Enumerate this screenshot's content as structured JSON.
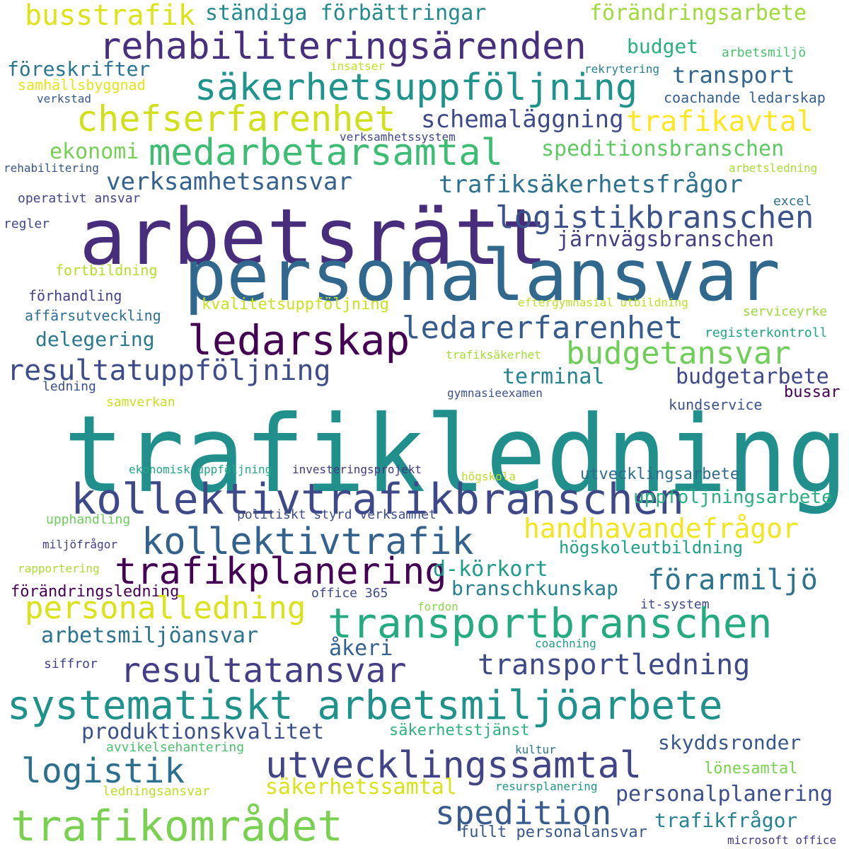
{
  "words": [
    {
      "text": "busstrafik",
      "color": "#dde318"
    },
    {
      "text": "ständiga förbättringar",
      "color": "#238a8d"
    },
    {
      "text": "förändringsarbete",
      "color": "#a0da39"
    },
    {
      "text": "rehabiliteringsärenden",
      "color": "#46307e"
    },
    {
      "text": "budget",
      "color": "#2ab07f"
    },
    {
      "text": "föreskrifter",
      "color": "#2a768e"
    },
    {
      "text": "insatser",
      "color": "#c2df23"
    },
    {
      "text": "rekrytering",
      "color": "#26828e"
    },
    {
      "text": "arbetsmiljö",
      "color": "#4ac16d"
    },
    {
      "text": "säkerhetsuppföljning",
      "color": "#1f948c"
    },
    {
      "text": "transport",
      "color": "#31668e"
    },
    {
      "text": "samhällsbyggnad",
      "color": "#e5e419"
    },
    {
      "text": "coachande ledarskap",
      "color": "#355f8d"
    },
    {
      "text": "verkstad",
      "color": "#38588c"
    },
    {
      "text": "chefserfarenhet",
      "color": "#d0e11c"
    },
    {
      "text": "schemaläggning",
      "color": "#3e4a89"
    },
    {
      "text": "trafikavtal",
      "color": "#fde725"
    },
    {
      "text": "verksamhetssystem",
      "color": "#404688"
    },
    {
      "text": "ekonomi",
      "color": "#75d054"
    },
    {
      "text": "medarbetarsamtal",
      "color": "#3dbc74"
    },
    {
      "text": "speditionsbranschen",
      "color": "#5ec962"
    },
    {
      "text": "rehabilitering",
      "color": "#39568c"
    },
    {
      "text": "arbetsledning",
      "color": "#a8db34"
    },
    {
      "text": "verksamhetsansvar",
      "color": "#34618d"
    },
    {
      "text": "trafiksäkerhetsfrågor",
      "color": "#2c718e"
    },
    {
      "text": "operativt ansvar",
      "color": "#414487"
    },
    {
      "text": "excel",
      "color": "#2d708e"
    },
    {
      "text": "arbetsrätt",
      "color": "#472d7b"
    },
    {
      "text": "logistikbranschen",
      "color": "#3b528b"
    },
    {
      "text": "regler",
      "color": "#3f4788"
    },
    {
      "text": "järnvägsbranschen",
      "color": "#433e85"
    },
    {
      "text": "personalansvar",
      "color": "#31688e"
    },
    {
      "text": "fortbildning",
      "color": "#b5de2b"
    },
    {
      "text": "förhandling",
      "color": "#424086"
    },
    {
      "text": "kvalitetsuppföljning",
      "color": "#cae11f"
    },
    {
      "text": "eftergymnasial utbildning",
      "color": "#bddf26"
    },
    {
      "text": "affärsutveckling",
      "color": "#2e6e8e"
    },
    {
      "text": "serviceyrke",
      "color": "#9bd93c"
    },
    {
      "text": "ledarskap",
      "color": "#440154"
    },
    {
      "text": "ledarerfarenhet",
      "color": "#365c8d"
    },
    {
      "text": "registerkontroll",
      "color": "#20a486"
    },
    {
      "text": "delegering",
      "color": "#2a788e"
    },
    {
      "text": "budgetansvar",
      "color": "#6ece58"
    },
    {
      "text": "trafiksäkerhet",
      "color": "#a5db36"
    },
    {
      "text": "resultatuppföljning",
      "color": "#3e4c8a"
    },
    {
      "text": "terminal",
      "color": "#25838e"
    },
    {
      "text": "budgetarbete",
      "color": "#3f4889"
    },
    {
      "text": "ledning",
      "color": "#3b518b"
    },
    {
      "text": "gymnasieexamen",
      "color": "#3b528b"
    },
    {
      "text": "bussar",
      "color": "#440154"
    },
    {
      "text": "samverkan",
      "color": "#c8e020"
    },
    {
      "text": "kundservice",
      "color": "#3b528b"
    },
    {
      "text": "trafikledning",
      "color": "#21908d"
    },
    {
      "text": "ekonomisk uppföljning",
      "color": "#22a785"
    },
    {
      "text": "investeringsprojekt",
      "color": "#453781"
    },
    {
      "text": "högskola",
      "color": "#b8de29"
    },
    {
      "text": "utvecklingsarbete",
      "color": "#2f6c8e"
    },
    {
      "text": "kollektivtrafikbranschen",
      "color": "#3e4989"
    },
    {
      "text": "uppföljningsarbete",
      "color": "#29af7f"
    },
    {
      "text": "upphandling",
      "color": "#6ccd5a"
    },
    {
      "text": "politiskt styrd verksamhet",
      "color": "#3d4d8a"
    },
    {
      "text": "handhavandefrågor",
      "color": "#f1e51d"
    },
    {
      "text": "kollektivtrafik",
      "color": "#33628d"
    },
    {
      "text": "miljöfrågor",
      "color": "#424086"
    },
    {
      "text": "högskoleutbildning",
      "color": "#1fa088"
    },
    {
      "text": "rapportering",
      "color": "#addc30"
    },
    {
      "text": "trafikplanering",
      "color": "#440154"
    },
    {
      "text": "d-körkort",
      "color": "#1e9b8a"
    },
    {
      "text": "förarmiljö",
      "color": "#2c738e"
    },
    {
      "text": "förändringsledning",
      "color": "#440154"
    },
    {
      "text": "office 365",
      "color": "#3f4889"
    },
    {
      "text": "branschkunskap",
      "color": "#27808e"
    },
    {
      "text": "personalledning",
      "color": "#dae319"
    },
    {
      "text": "fordon",
      "color": "#8bd646"
    },
    {
      "text": "it-system",
      "color": "#3e4989"
    },
    {
      "text": "transportbranschen",
      "color": "#25ab82"
    },
    {
      "text": "arbetsmiljöansvar",
      "color": "#2c738e"
    },
    {
      "text": "åkeri",
      "color": "#34618d"
    },
    {
      "text": "coachning",
      "color": "#1e9c89"
    },
    {
      "text": "siffror",
      "color": "#414487"
    },
    {
      "text": "resultatansvar",
      "color": "#433e85"
    },
    {
      "text": "transportledning",
      "color": "#3e4989"
    },
    {
      "text": "systematiskt arbetsmiljöarbete",
      "color": "#20928c"
    },
    {
      "text": "produktionskvalitet",
      "color": "#3c508b"
    },
    {
      "text": "säkerhetstjänst",
      "color": "#2eb37c"
    },
    {
      "text": "avvikelsehantering",
      "color": "#4ac16d"
    },
    {
      "text": "kultur",
      "color": "#2a788e"
    },
    {
      "text": "skyddsronder",
      "color": "#38588c"
    },
    {
      "text": "logistik",
      "color": "#2d708e"
    },
    {
      "text": "utvecklingssamtal",
      "color": "#414487"
    },
    {
      "text": "lönesamtal",
      "color": "#7ad151"
    },
    {
      "text": "ledningsansvar",
      "color": "#bddf26"
    },
    {
      "text": "säkerhetssamtal",
      "color": "#d8e219"
    },
    {
      "text": "resursplanering",
      "color": "#1f958b"
    },
    {
      "text": "personalplanering",
      "color": "#3c4f8a"
    },
    {
      "text": "spedition",
      "color": "#375b8d"
    },
    {
      "text": "trafikfrågor",
      "color": "#26828e"
    },
    {
      "text": "trafikområdet",
      "color": "#7ad151"
    },
    {
      "text": "fullt personalansvar",
      "color": "#38588c"
    },
    {
      "text": "microsoft office",
      "color": "#443a83"
    }
  ]
}
